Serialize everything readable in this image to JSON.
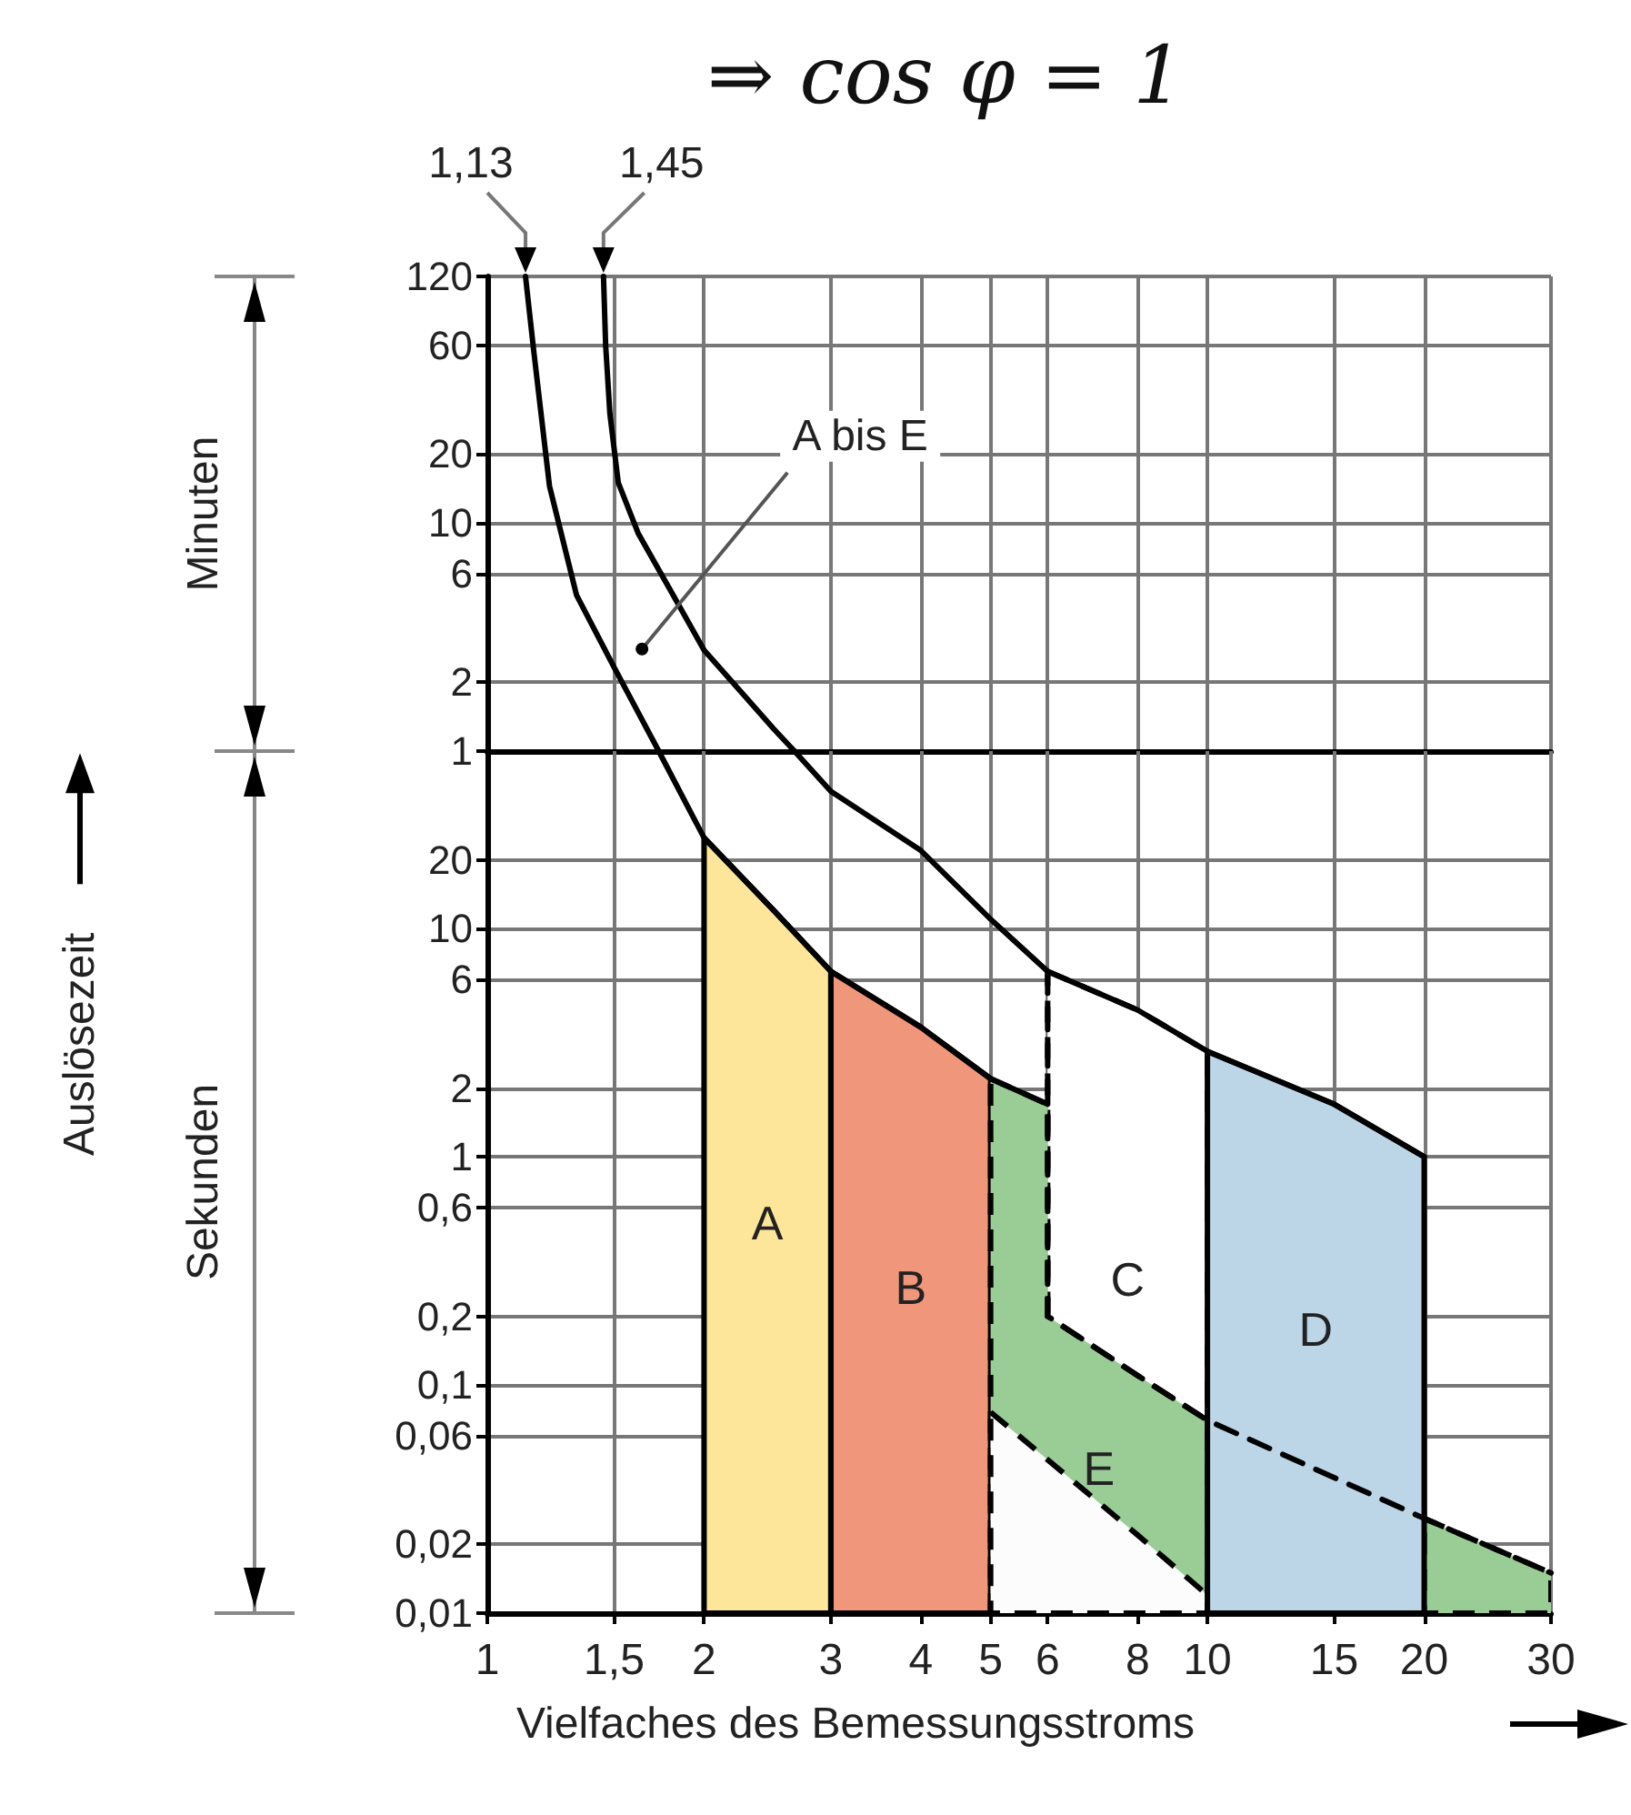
{
  "chart_data": [
    {
      "type": "line",
      "ylabel": "Minuten",
      "log": "xy",
      "grid": true,
      "legend": false,
      "marker": "none",
      "tick_labels": "y",
      "xlim": [
        1,
        30
      ],
      "xticks": [
        1,
        1.5,
        2,
        3,
        4,
        5,
        6,
        8,
        10,
        15,
        20,
        30
      ],
      "ylim": [
        1,
        120
      ],
      "yticks": [
        1,
        2,
        6,
        10,
        20,
        60,
        120
      ],
      "annotations": [
        "⇒ cos φ = 1",
        {
          "text": "1,13",
          "x": 1.13,
          "y": 120
        },
        {
          "text": "1,45",
          "x": 1.45,
          "y": 120
        },
        {
          "text": "A bis E",
          "x": 1.64,
          "y": 2.8
        }
      ],
      "series": [
        {
          "color": "#000000",
          "line_style": "solid",
          "x": [
            1.45,
            1.46,
            1.48,
            1.52,
            1.62,
            1.8,
            2,
            2.5,
            2.67
          ],
          "values": [
            120,
            60,
            30,
            15,
            9,
            5,
            2.77,
            1.25,
            1
          ]
        },
        {
          "color": "#000000",
          "line_style": "solid",
          "x": [
            1.13,
            1.16,
            1.22,
            1.33,
            1.5,
            1.73
          ],
          "values": [
            120,
            56.7,
            14.5,
            4.83,
            2.33,
            1
          ]
        }
      ]
    },
    {
      "type": "line",
      "xlabel": "Vielfaches des Bemessungsstroms",
      "ylabel": "Sekunden",
      "log": "xy",
      "grid": true,
      "legend": false,
      "marker": "none",
      "xlim": [
        1,
        30
      ],
      "xticks": [
        1,
        {
          "value": 1.5,
          "label": "1,5"
        },
        2,
        3,
        4,
        5,
        6,
        8,
        10,
        15,
        20,
        30
      ],
      "ylim": [
        0.01,
        60
      ],
      "yticks": [
        {
          "value": 0.01,
          "label": "0,01"
        },
        {
          "value": 0.02,
          "label": "0,02"
        },
        {
          "value": 0.06,
          "label": "0,06"
        },
        {
          "value": 0.1,
          "label": "0,1"
        },
        {
          "value": 0.2,
          "label": "0,2"
        },
        {
          "value": 0.6,
          "label": "0,6"
        },
        1,
        2,
        6,
        10,
        20
      ],
      "annotations": [
        "Auslösezeit"
      ],
      "series": [
        {
          "name": "A",
          "type": "area",
          "color": "#fde69a",
          "line_style": "solid",
          "x": [
            2,
            2.5,
            3
          ],
          "values": [
            25,
            12,
            6.5
          ]
        },
        {
          "name": "B",
          "type": "area",
          "color": "#f0967a",
          "line_style": "solid",
          "x": [
            3,
            4,
            5
          ],
          "values": [
            6.5,
            3.7,
            2.2
          ]
        },
        {
          "name": "C",
          "type": "area",
          "color": "#ffffff",
          "line_style": "dashed",
          "x": [
            6,
            8,
            10
          ],
          "values": [
            6.5,
            4.4,
            2.9
          ]
        },
        {
          "name": "E",
          "type": "area",
          "color": "#9acc96",
          "line_style": "dashed",
          "x": [
            5,
            6,
            6,
            8,
            10,
            15,
            20,
            30
          ],
          "values": [
            2.2,
            1.7,
            0.2,
            0.11,
            0.07,
            null,
            0.026,
            0.015
          ]
        },
        {
          "type": "area",
          "color": "#fcfcfc",
          "line_style": "dashed",
          "x": [
            5,
            6,
            8,
            10
          ],
          "values": [
            0.076,
            0.047,
            0.022,
            0.012
          ]
        },
        {
          "name": "D",
          "type": "area",
          "color": "#bcd6e8",
          "line_style": "solid",
          "x": [
            10,
            15,
            20
          ],
          "values": [
            2.9,
            1.7,
            1
          ]
        },
        {
          "color": "#000000",
          "line_style": "solid",
          "x": [
            2.67,
            3,
            4,
            5,
            6,
            8,
            10,
            15,
            20
          ],
          "values": [
            60,
            40,
            22,
            11,
            6.5,
            4.4,
            2.9,
            1.7,
            1
          ]
        },
        {
          "color": "#000000",
          "line_style": "solid",
          "x": [
            1.73,
            2,
            2.5,
            3,
            4,
            5,
            6
          ],
          "values": [
            60,
            25,
            12,
            6.5,
            3.7,
            2.2,
            1.7
          ]
        },
        {
          "color": "#000000",
          "line_style": "dashed",
          "x": [
            6,
            6,
            8,
            10,
            20,
            30
          ],
          "values": [
            6.5,
            0.2,
            0.11,
            0.07,
            0.026,
            0.015
          ]
        }
      ]
    }
  ]
}
